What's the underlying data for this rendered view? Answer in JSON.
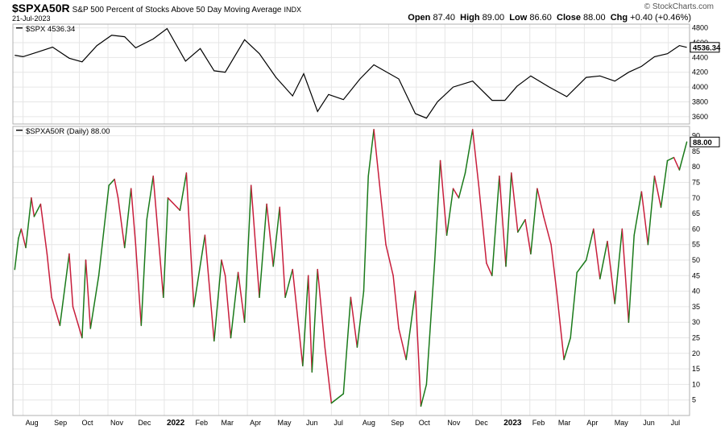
{
  "header": {
    "symbol": "$SPXA50R",
    "subtitle": "S&P 500 Percent of Stocks Above 50 Day Moving Average",
    "exchange": "INDX",
    "date": "21-Jul-2023",
    "copyright": "© StockCharts.com",
    "open_label": "Open",
    "open": "87.40",
    "high_label": "High",
    "high": "89.00",
    "low_label": "Low",
    "low": "86.60",
    "close_label": "Close",
    "close": "88.00",
    "chg_label": "Chg",
    "chg": "+0.40 (+0.46%)"
  },
  "colors": {
    "up": "#1a7a1a",
    "down": "#c81e3c",
    "price": "#000000",
    "grid": "#e6e6e6",
    "frame": "#b0b0b0"
  },
  "chart_data": [
    {
      "type": "line",
      "series": [
        {
          "name": "$SPX",
          "label_text": "$SPX 4536.34",
          "last_value": "4536.34"
        }
      ],
      "ylim": [
        3500,
        4850
      ],
      "yticks": [
        "3600",
        "3800",
        "4000",
        "4200",
        "4400",
        "4600",
        "4800"
      ],
      "x_months": [
        "Aug",
        "Sep",
        "Oct",
        "Nov",
        "Dec",
        "2022",
        "Feb",
        "Mar",
        "Apr",
        "May",
        "Jun",
        "Jul",
        "Aug",
        "Sep",
        "Oct",
        "Nov",
        "Dec",
        "2023",
        "Feb",
        "Mar",
        "Apr",
        "May",
        "Jun",
        "Jul"
      ],
      "x": [
        "2021-07-23",
        "2021-08-01",
        "2021-08-16",
        "2021-09-02",
        "2021-09-20",
        "2021-10-04",
        "2021-10-20",
        "2021-11-05",
        "2021-11-19",
        "2021-12-01",
        "2021-12-20",
        "2022-01-04",
        "2022-01-24",
        "2022-02-09",
        "2022-02-24",
        "2022-03-08",
        "2022-03-29",
        "2022-04-14",
        "2022-05-02",
        "2022-05-20",
        "2022-06-01",
        "2022-06-16",
        "2022-06-28",
        "2022-07-14",
        "2022-08-01",
        "2022-08-16",
        "2022-09-12",
        "2022-09-30",
        "2022-10-12",
        "2022-10-24",
        "2022-11-10",
        "2022-12-01",
        "2022-12-22",
        "2023-01-05",
        "2023-01-18",
        "2023-02-02",
        "2023-02-22",
        "2023-03-13",
        "2023-04-03",
        "2023-04-18",
        "2023-05-04",
        "2023-05-19",
        "2023-06-02",
        "2023-06-16",
        "2023-06-30",
        "2023-07-13",
        "2023-07-21"
      ],
      "values": [
        4430,
        4410,
        4470,
        4540,
        4390,
        4340,
        4560,
        4700,
        4680,
        4530,
        4650,
        4790,
        4350,
        4520,
        4220,
        4200,
        4640,
        4450,
        4130,
        3880,
        4180,
        3670,
        3900,
        3830,
        4110,
        4300,
        4110,
        3640,
        3580,
        3800,
        4000,
        4080,
        3820,
        3820,
        4010,
        4150,
        4000,
        3870,
        4130,
        4150,
        4080,
        4200,
        4280,
        4410,
        4450,
        4560,
        4536.34
      ]
    },
    {
      "type": "line",
      "series": [
        {
          "name": "$SPXA50R",
          "label_text": "$SPXA50R (Daily) 88.00",
          "last_value": "88.00"
        }
      ],
      "ylim": [
        0,
        93
      ],
      "yticks": [
        "5",
        "10",
        "15",
        "20",
        "25",
        "30",
        "35",
        "40",
        "45",
        "50",
        "55",
        "60",
        "65",
        "70",
        "75",
        "80",
        "85",
        "90"
      ],
      "x": [
        "2021-07-23",
        "2021-07-27",
        "2021-07-30",
        "2021-08-04",
        "2021-08-10",
        "2021-08-13",
        "2021-08-20",
        "2021-08-27",
        "2021-09-01",
        "2021-09-10",
        "2021-09-20",
        "2021-09-24",
        "2021-10-04",
        "2021-10-08",
        "2021-10-13",
        "2021-10-22",
        "2021-11-02",
        "2021-11-08",
        "2021-11-12",
        "2021-11-19",
        "2021-11-26",
        "2021-12-01",
        "2021-12-07",
        "2021-12-13",
        "2021-12-20",
        "2021-12-31",
        "2022-01-05",
        "2022-01-18",
        "2022-01-25",
        "2022-02-02",
        "2022-02-14",
        "2022-02-24",
        "2022-03-04",
        "2022-03-08",
        "2022-03-14",
        "2022-03-22",
        "2022-03-29",
        "2022-04-05",
        "2022-04-14",
        "2022-04-22",
        "2022-04-29",
        "2022-05-06",
        "2022-05-12",
        "2022-05-20",
        "2022-05-31",
        "2022-06-06",
        "2022-06-10",
        "2022-06-16",
        "2022-06-24",
        "2022-07-01",
        "2022-07-14",
        "2022-07-22",
        "2022-07-29",
        "2022-08-05",
        "2022-08-10",
        "2022-08-16",
        "2022-08-23",
        "2022-08-29",
        "2022-09-06",
        "2022-09-12",
        "2022-09-20",
        "2022-09-30",
        "2022-10-06",
        "2022-10-12",
        "2022-10-21",
        "2022-10-27",
        "2022-11-03",
        "2022-11-10",
        "2022-11-16",
        "2022-11-23",
        "2022-12-01",
        "2022-12-08",
        "2022-12-16",
        "2022-12-22",
        "2022-12-30",
        "2023-01-06",
        "2023-01-12",
        "2023-01-19",
        "2023-01-27",
        "2023-02-02",
        "2023-02-09",
        "2023-02-16",
        "2023-02-24",
        "2023-03-02",
        "2023-03-10",
        "2023-03-17",
        "2023-03-24",
        "2023-04-03",
        "2023-04-11",
        "2023-04-18",
        "2023-04-26",
        "2023-05-04",
        "2023-05-12",
        "2023-05-19",
        "2023-05-25",
        "2023-06-02",
        "2023-06-09",
        "2023-06-16",
        "2023-06-23",
        "2023-06-30",
        "2023-07-07",
        "2023-07-13",
        "2023-07-21"
      ],
      "values": [
        47,
        57,
        60,
        54,
        70,
        64,
        68,
        52,
        38,
        29,
        52,
        35,
        25,
        50,
        28,
        45,
        74,
        76,
        70,
        54,
        73,
        55,
        29,
        63,
        77,
        38,
        70,
        66,
        78,
        35,
        58,
        24,
        50,
        45,
        25,
        46,
        30,
        74,
        38,
        68,
        48,
        67,
        38,
        47,
        16,
        45,
        14,
        47,
        22,
        4,
        7,
        38,
        22,
        40,
        77,
        92,
        72,
        55,
        45,
        28,
        18,
        40,
        3,
        10,
        50,
        82,
        58,
        73,
        70,
        78,
        92,
        73,
        49,
        45,
        77,
        48,
        78,
        59,
        63,
        52,
        73,
        64,
        55,
        40,
        18,
        25,
        46,
        50,
        60,
        44,
        56,
        36,
        60,
        30,
        58,
        72,
        55,
        77,
        67,
        82,
        83,
        79,
        88
      ]
    }
  ]
}
